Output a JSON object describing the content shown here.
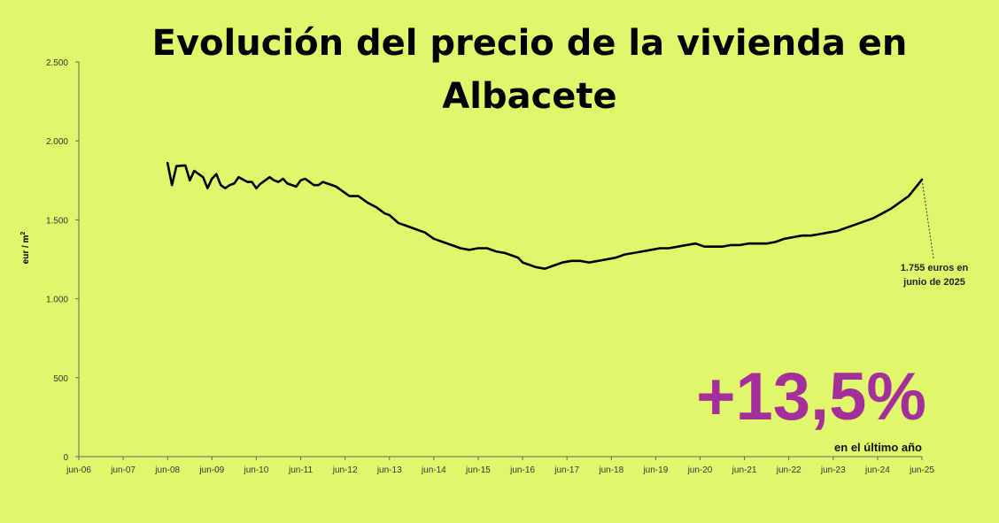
{
  "chart_data": {
    "type": "line",
    "title_lines": [
      "Evolución del precio de la vivienda en",
      "Albacete"
    ],
    "ylabel": "eur / m",
    "ylabel_superscript": "2",
    "ylim": [
      0,
      2500
    ],
    "y_ticks": [
      0,
      500,
      1000,
      1500,
      2000,
      2500
    ],
    "y_tick_labels": [
      "0",
      "500",
      "1.000",
      "1.500",
      "2.000",
      "2.500"
    ],
    "x_ticks": [
      "jun-06",
      "jun-07",
      "jun-08",
      "jun-09",
      "jun-10",
      "jun-11",
      "jun-12",
      "jun-13",
      "jun-14",
      "jun-15",
      "jun-16",
      "jun-17",
      "jun-18",
      "jun-19",
      "jun-20",
      "jun-21",
      "jun-22",
      "jun-23",
      "jun-24",
      "jun-25"
    ],
    "series": [
      {
        "color": "#000000",
        "x": [
          2008.0,
          2008.1,
          2008.2,
          2008.4,
          2008.5,
          2008.6,
          2008.7,
          2008.8,
          2008.9,
          2009.0,
          2009.1,
          2009.2,
          2009.3,
          2009.4,
          2009.5,
          2009.6,
          2009.8,
          2009.9,
          2010.0,
          2010.1,
          2010.3,
          2010.4,
          2010.5,
          2010.6,
          2010.7,
          2010.9,
          2011.0,
          2011.1,
          2011.3,
          2011.4,
          2011.5,
          2011.6,
          2011.8,
          2012.0,
          2012.1,
          2012.3,
          2012.5,
          2012.7,
          2012.9,
          2013.0,
          2013.2,
          2013.4,
          2013.6,
          2013.8,
          2014.0,
          2014.2,
          2014.4,
          2014.6,
          2014.8,
          2015.0,
          2015.2,
          2015.4,
          2015.6,
          2015.8,
          2015.9,
          2016.0,
          2016.1,
          2016.3,
          2016.5,
          2016.7,
          2016.9,
          2017.1,
          2017.3,
          2017.5,
          2017.7,
          2017.9,
          2018.1,
          2018.3,
          2018.5,
          2018.7,
          2018.9,
          2019.1,
          2019.3,
          2019.5,
          2019.7,
          2019.9,
          2020.1,
          2020.3,
          2020.5,
          2020.7,
          2020.9,
          2021.1,
          2021.3,
          2021.5,
          2021.7,
          2021.9,
          2022.1,
          2022.3,
          2022.5,
          2022.7,
          2022.9,
          2023.1,
          2023.3,
          2023.5,
          2023.7,
          2023.9,
          2024.1,
          2024.3,
          2024.5,
          2024.7,
          2024.9,
          2025.0
        ],
        "values": [
          1860,
          1720,
          1840,
          1845,
          1750,
          1810,
          1790,
          1770,
          1700,
          1760,
          1790,
          1720,
          1700,
          1720,
          1730,
          1770,
          1740,
          1740,
          1700,
          1730,
          1770,
          1750,
          1740,
          1760,
          1730,
          1710,
          1750,
          1760,
          1720,
          1720,
          1740,
          1730,
          1710,
          1670,
          1650,
          1650,
          1610,
          1580,
          1540,
          1530,
          1480,
          1460,
          1440,
          1420,
          1380,
          1360,
          1340,
          1320,
          1310,
          1320,
          1320,
          1300,
          1290,
          1270,
          1260,
          1230,
          1220,
          1200,
          1190,
          1210,
          1230,
          1240,
          1240,
          1230,
          1240,
          1250,
          1260,
          1280,
          1290,
          1300,
          1310,
          1320,
          1320,
          1330,
          1340,
          1350,
          1330,
          1330,
          1330,
          1340,
          1340,
          1350,
          1350,
          1350,
          1360,
          1380,
          1390,
          1400,
          1400,
          1410,
          1420,
          1430,
          1450,
          1470,
          1490,
          1510,
          1540,
          1570,
          1610,
          1650,
          1720,
          1755
        ]
      }
    ],
    "annotation_lines": [
      "1.755  euros en",
      "junio de 2025"
    ],
    "headline_value": "+13,5%",
    "headline_sub": "en el último año"
  }
}
